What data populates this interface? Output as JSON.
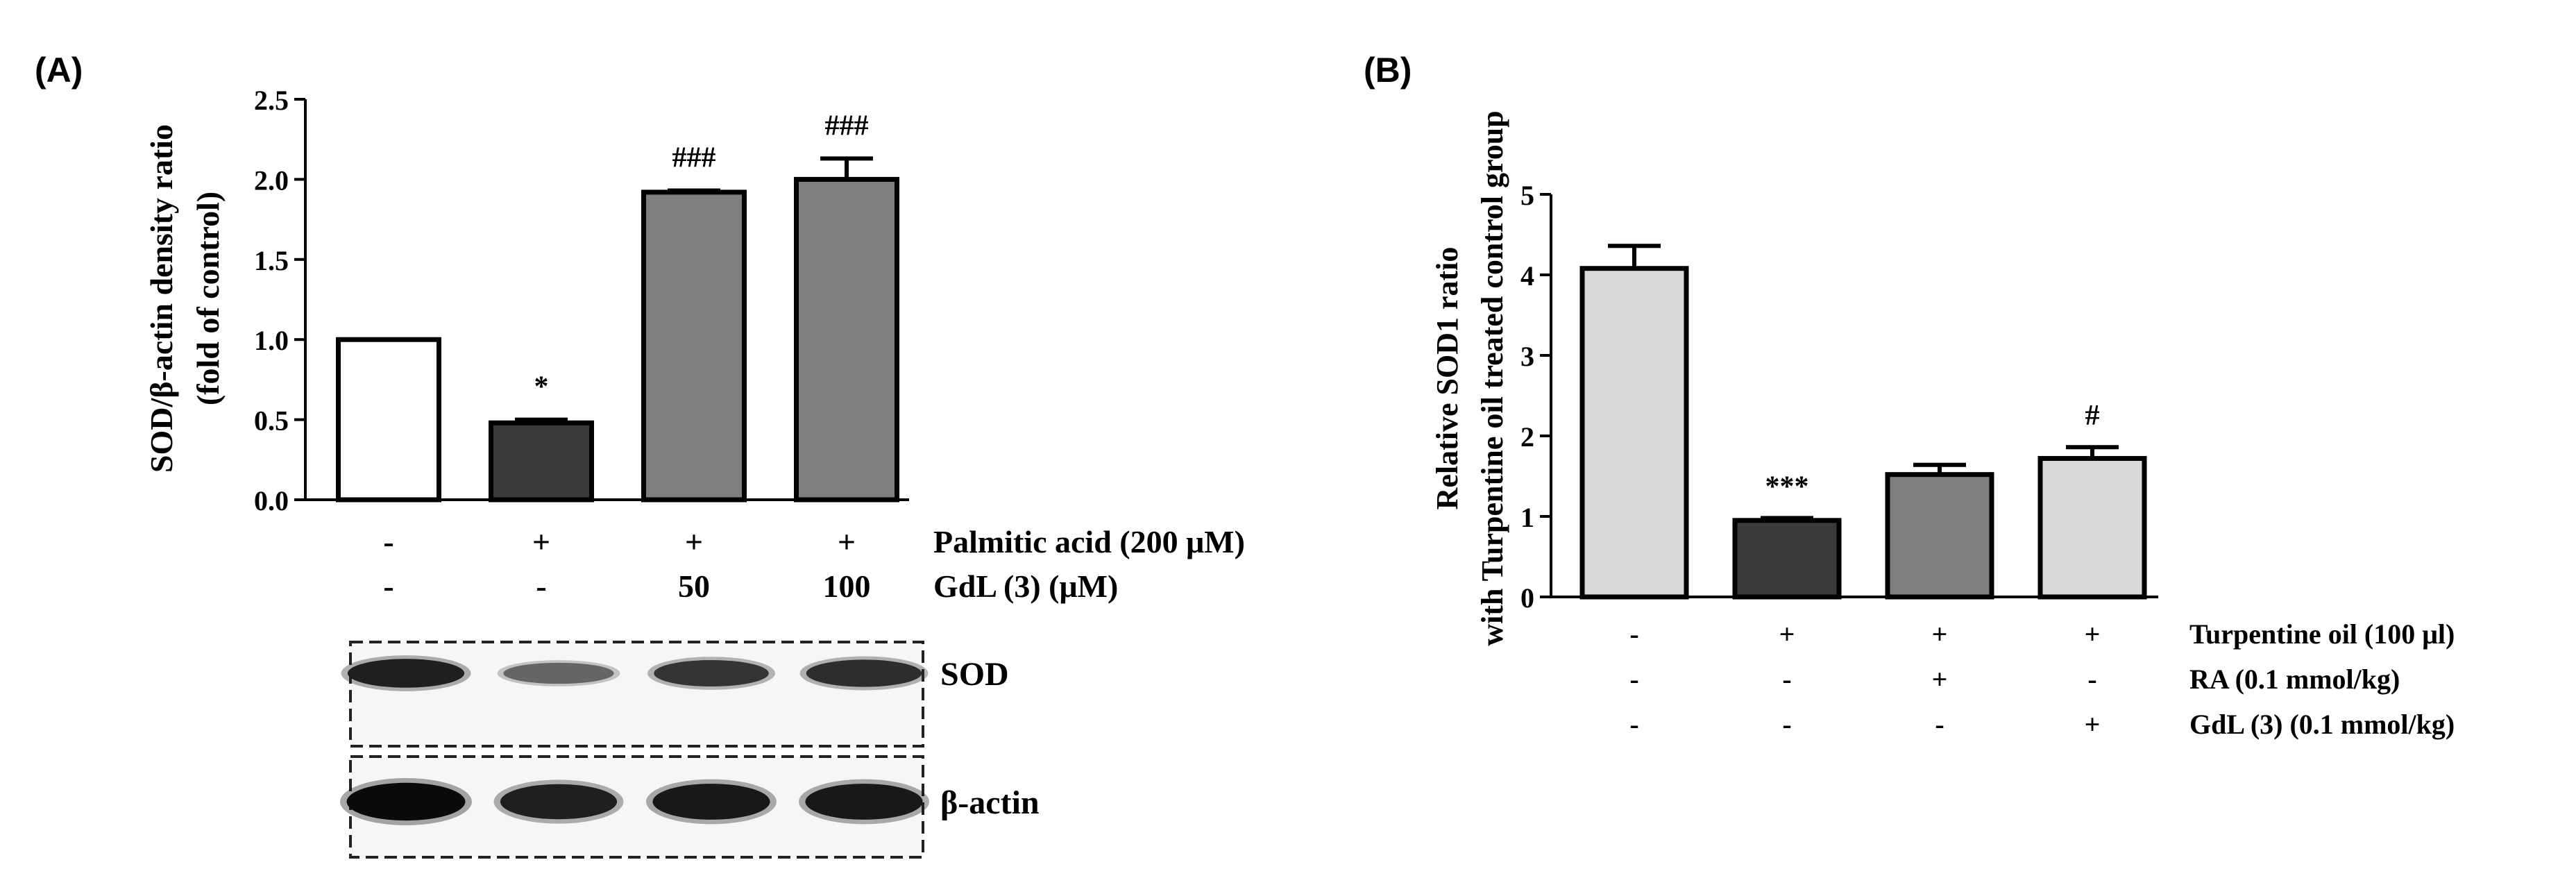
{
  "panels": {
    "a": {
      "label": "(A)",
      "ylabel_line1": "SOD/β-actin density ratio",
      "ylabel_line2": "(fold of control)",
      "treatment_rows": [
        {
          "label": "Palmitic acid (200 μM)",
          "values": [
            "-",
            "+",
            "+",
            "+"
          ]
        },
        {
          "label": "GdL (3) (μM)",
          "values": [
            "-",
            "-",
            "50",
            "100"
          ]
        }
      ],
      "blot": {
        "rows": [
          {
            "label": "SOD",
            "band_intensity": [
              0.85,
              0.35,
              0.7,
              0.75
            ]
          },
          {
            "label": "β-actin",
            "band_intensity": [
              1.0,
              0.85,
              0.9,
              0.9
            ]
          }
        ]
      }
    },
    "b": {
      "label": "(B)",
      "ylabel_line1": "Relative SOD1 ratio",
      "ylabel_line2": "with Turpentine oil treated control group",
      "treatment_rows": [
        {
          "label": "Turpentine oil (100 μl)",
          "values": [
            "-",
            "+",
            "+",
            "+"
          ]
        },
        {
          "label": "RA (0.1 mmol/kg)",
          "values": [
            "-",
            "-",
            "+",
            "-"
          ]
        },
        {
          "label": "GdL (3) (0.1 mmol/kg)",
          "values": [
            "-",
            "-",
            "-",
            "+"
          ]
        }
      ]
    }
  },
  "chart_data": [
    {
      "type": "bar",
      "panel": "A",
      "title": "",
      "ylabel": "SOD/β-actin density ratio (fold of control)",
      "ylim": [
        0,
        2.5
      ],
      "yticks": [
        "0.0",
        "0.5",
        "1.0",
        "1.5",
        "2.0",
        "2.5"
      ],
      "values": [
        1.0,
        0.48,
        1.92,
        2.0
      ],
      "errors": [
        0,
        0.02,
        0.01,
        0.13
      ],
      "bar_colors": [
        "#ffffff",
        "#3a3a3a",
        "#7f7f7f",
        "#7f7f7f"
      ],
      "annotations": [
        "",
        "*",
        "###",
        "###"
      ]
    },
    {
      "type": "bar",
      "panel": "B",
      "title": "",
      "ylabel": "Relative SOD1 ratio with Turpentine oil treated control group",
      "ylim": [
        0,
        5
      ],
      "yticks": [
        "0",
        "1",
        "2",
        "3",
        "4",
        "5"
      ],
      "values": [
        4.08,
        0.95,
        1.52,
        1.72
      ],
      "errors": [
        0.28,
        0.03,
        0.12,
        0.14
      ],
      "bar_colors": [
        "#d9d9d9",
        "#3a3a3a",
        "#7f7f7f",
        "#d9d9d9"
      ],
      "annotations": [
        "",
        "***",
        "",
        "#"
      ]
    }
  ]
}
